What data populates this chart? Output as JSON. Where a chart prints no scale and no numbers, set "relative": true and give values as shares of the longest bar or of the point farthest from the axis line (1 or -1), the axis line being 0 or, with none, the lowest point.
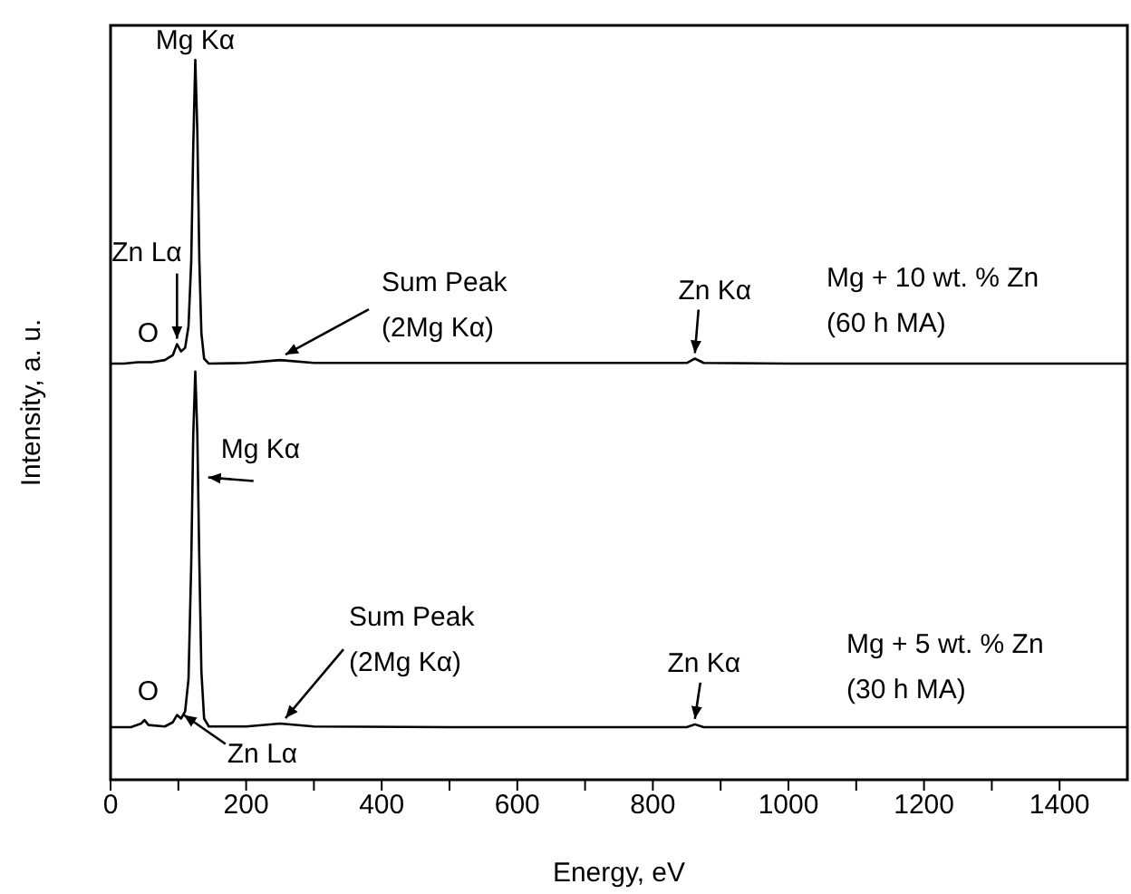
{
  "chart_data": {
    "type": "line",
    "relative": true,
    "xlabel": "Energy, eV",
    "ylabel": "Intensity, a. u.",
    "xlim": [
      0,
      1500
    ],
    "xticks": [
      0,
      {
        "value": 100,
        "label": null
      },
      200,
      {
        "value": 300,
        "label": null
      },
      400,
      {
        "value": 500,
        "label": null
      },
      600,
      {
        "value": 700,
        "label": null
      },
      800,
      {
        "value": 900,
        "label": null
      },
      1000,
      {
        "value": 1100,
        "label": null
      },
      1200,
      {
        "value": 1300,
        "label": null
      },
      1400
    ],
    "series": [
      {
        "name": "Mg + 10 wt. % Zn\n(60 h MA)",
        "color": "#000000",
        "x": [
          0,
          20,
          40,
          60,
          80,
          92,
          98,
          104,
          110,
          115,
          119,
          122,
          125,
          128,
          131,
          134,
          138,
          145,
          200,
          250,
          300,
          500,
          700,
          850,
          862,
          875,
          1000,
          1500
        ],
        "values": [
          0.578,
          0.578,
          0.58,
          0.58,
          0.583,
          0.59,
          0.605,
          0.595,
          0.6,
          0.63,
          0.72,
          0.88,
          1.0,
          0.9,
          0.72,
          0.62,
          0.585,
          0.578,
          0.579,
          0.583,
          0.579,
          0.579,
          0.579,
          0.579,
          0.585,
          0.579,
          0.578,
          0.578
        ]
      },
      {
        "name": "Mg + 5 wt. % Zn\n(30 h MA)",
        "color": "#000000",
        "x": [
          0,
          30,
          45,
          50,
          56,
          80,
          92,
          98,
          104,
          110,
          115,
          119,
          122,
          125,
          128,
          131,
          134,
          138,
          145,
          200,
          250,
          300,
          500,
          850,
          862,
          875,
          1000,
          1500
        ],
        "values": [
          0.073,
          0.073,
          0.078,
          0.083,
          0.076,
          0.074,
          0.08,
          0.09,
          0.085,
          0.095,
          0.14,
          0.3,
          0.48,
          0.567,
          0.48,
          0.3,
          0.15,
          0.085,
          0.074,
          0.074,
          0.078,
          0.074,
          0.073,
          0.073,
          0.077,
          0.073,
          0.073,
          0.073
        ]
      }
    ],
    "annotations": [
      {
        "text": "Mg Kα",
        "x": 125,
        "y": 1.0
      },
      {
        "text": "Zn Lα",
        "x": 98,
        "y": 0.605
      },
      {
        "text": "O",
        "x": 50,
        "y": 0.58
      },
      {
        "text": "Sum Peak\n(2Mg Kα)",
        "x": 250,
        "y": 0.583
      },
      {
        "text": "Zn Kα",
        "x": 862,
        "y": 0.585
      },
      {
        "text": "Mg Kα",
        "x": 136,
        "y": 0.42
      },
      {
        "text": "O",
        "x": 50,
        "y": 0.083
      },
      {
        "text": "Zn Lα",
        "x": 100,
        "y": 0.09
      },
      {
        "text": "Sum Peak\n(2Mg Kα)",
        "x": 250,
        "y": 0.078
      },
      {
        "text": "Zn Kα",
        "x": 862,
        "y": 0.077
      }
    ]
  }
}
